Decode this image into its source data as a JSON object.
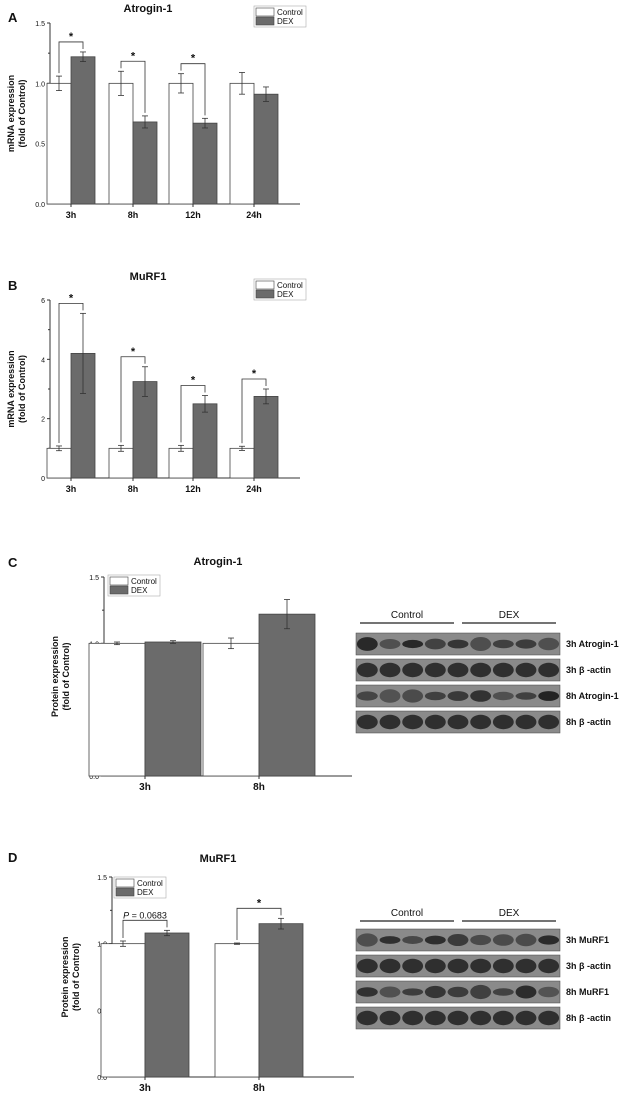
{
  "chart_data": [
    {
      "panel": "A",
      "type": "bar",
      "title": "Atrogin-1",
      "ylabel": "mRNA expression\n(fold of Control)",
      "categories": [
        "3h",
        "8h",
        "12h",
        "24h"
      ],
      "ylim": [
        0,
        1.5
      ],
      "yticks": [
        "0.0",
        "0.5",
        "1.0",
        "1.5"
      ],
      "series": [
        {
          "name": "Control",
          "values": [
            1.0,
            1.0,
            1.0,
            1.0
          ],
          "errors": [
            0.06,
            0.1,
            0.08,
            0.09
          ]
        },
        {
          "name": "DEX",
          "values": [
            1.22,
            0.68,
            0.67,
            0.91
          ],
          "errors": [
            0.04,
            0.05,
            0.04,
            0.06
          ]
        }
      ],
      "annotations": [
        {
          "category": "3h",
          "text": "*"
        },
        {
          "category": "8h",
          "text": "*"
        },
        {
          "category": "12h",
          "text": "*"
        }
      ],
      "legend": "top-right"
    },
    {
      "panel": "B",
      "type": "bar",
      "title": "MuRF1",
      "ylabel": "mRNA expression\n(fold of Control)",
      "categories": [
        "3h",
        "8h",
        "12h",
        "24h"
      ],
      "ylim": [
        0,
        6
      ],
      "yticks": [
        "0",
        "2",
        "4",
        "6"
      ],
      "series": [
        {
          "name": "Control",
          "values": [
            1.0,
            1.0,
            1.0,
            1.0
          ],
          "errors": [
            0.08,
            0.1,
            0.1,
            0.07
          ]
        },
        {
          "name": "DEX",
          "values": [
            4.2,
            3.25,
            2.5,
            2.75
          ],
          "errors": [
            1.35,
            0.5,
            0.28,
            0.25
          ]
        }
      ],
      "annotations": [
        {
          "category": "3h",
          "text": "*"
        },
        {
          "category": "8h",
          "text": "*"
        },
        {
          "category": "12h",
          "text": "*"
        },
        {
          "category": "24h",
          "text": "*"
        }
      ],
      "legend": "top-right"
    },
    {
      "panel": "C",
      "type": "bar",
      "title": "Atrogin-1",
      "ylabel": "Protein expression\n(fold of Control)",
      "categories": [
        "3h",
        "8h"
      ],
      "ylim": [
        0,
        1.5
      ],
      "yticks": [
        "0.0",
        "0.5",
        "1.0",
        "1.5"
      ],
      "series": [
        {
          "name": "Control",
          "values": [
            1.0,
            1.0
          ],
          "errors": [
            0.01,
            0.04
          ]
        },
        {
          "name": "DEX",
          "values": [
            1.01,
            1.22
          ],
          "errors": [
            0.01,
            0.11
          ]
        }
      ],
      "annotations": [],
      "legend": "top-left"
    },
    {
      "panel": "D",
      "type": "bar",
      "title": "MuRF1",
      "ylabel": "Protein expression\n(fold of Control)",
      "categories": [
        "3h",
        "8h"
      ],
      "ylim": [
        0,
        1.5
      ],
      "yticks": [
        "0.0",
        "0.5",
        "1.0",
        "1.5"
      ],
      "series": [
        {
          "name": "Control",
          "values": [
            1.0,
            1.0
          ],
          "errors": [
            0.02,
            0.005
          ]
        },
        {
          "name": "DEX",
          "values": [
            1.08,
            1.15
          ],
          "errors": [
            0.02,
            0.04
          ]
        }
      ],
      "annotations": [
        {
          "category": "3h",
          "text_italic": "P",
          "text": " = 0.0683"
        },
        {
          "category": "8h",
          "text": "*"
        }
      ],
      "legend": "top-left"
    }
  ],
  "blots": [
    {
      "panel": "C",
      "group_labels": [
        "Control",
        "DEX"
      ],
      "rows": [
        "3h Atrogin-1",
        "3h β -actin",
        "8h Atrogin-1",
        "8h β -actin"
      ]
    },
    {
      "panel": "D",
      "group_labels": [
        "Control",
        "DEX"
      ],
      "rows": [
        "3h MuRF1",
        "3h β -actin",
        "8h MuRF1",
        "8h β -actin"
      ]
    }
  ],
  "colors": {
    "control_fill": "#ffffff",
    "dex_fill": "#6b6b6b",
    "axis": "#333333",
    "blot_dark": "#1e1e1e",
    "blot_mid": "#5a5a5a"
  }
}
